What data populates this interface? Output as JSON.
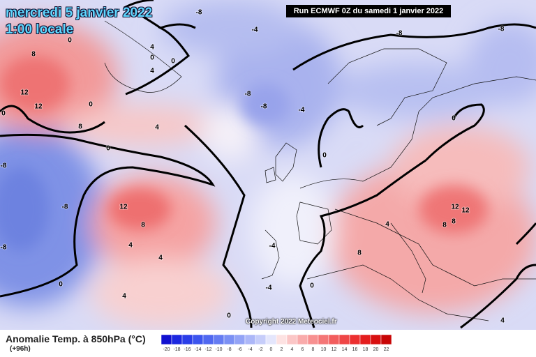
{
  "header": {
    "title": "mercredi 5 janvier 2022",
    "time": "1:00 locale",
    "run": "Run ECMWF 0Z du samedi 1 janvier 2022"
  },
  "map": {
    "contour_labels": [
      "8",
      "12",
      "12",
      "8",
      "0",
      "0",
      "4",
      "0",
      "4",
      "0",
      "0",
      "4",
      "-4",
      "-8",
      "-8",
      "-8",
      "-8",
      "-8",
      "-4",
      "0",
      "12",
      "8",
      "4",
      "4",
      "4",
      "0",
      "-8",
      "-8",
      "-8",
      "0",
      "4",
      "8",
      "12",
      "12",
      "8",
      "8",
      "0",
      "0",
      "-4",
      "-4",
      "0",
      "4"
    ],
    "copyright": "Copyright 2022 Meteociel.fr"
  },
  "footer": {
    "label": "Anomalie Temp. à 850hPa (°C)",
    "lead": "(+96h)",
    "colorbar_ticks": [
      "-20",
      "-18",
      "-16",
      "-14",
      "-12",
      "-10",
      "-8",
      "-6",
      "-4",
      "-2",
      "0",
      "2",
      "4",
      "6",
      "8",
      "10",
      "12",
      "14",
      "16",
      "18",
      "20",
      "22"
    ]
  }
}
